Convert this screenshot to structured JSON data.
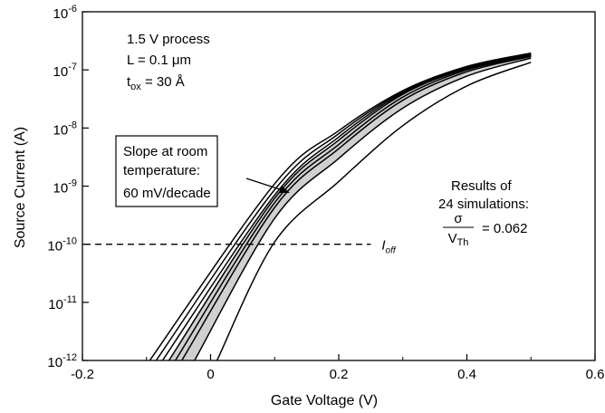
{
  "chart_data": {
    "type": "line",
    "xlabel": "Gate Voltage (V)",
    "ylabel": "Source Current (A)",
    "xlim": [
      -0.2,
      0.6
    ],
    "ylim": [
      1e-12,
      1e-06
    ],
    "yscale": "log",
    "x_ticks": [
      {
        "value": -0.2,
        "label": "-0.2"
      },
      {
        "value": 0,
        "label": "0"
      },
      {
        "value": 0.2,
        "label": "0.2"
      },
      {
        "value": 0.4,
        "label": "0.4"
      },
      {
        "value": 0.6,
        "label": "0.6"
      }
    ],
    "y_ticks": [
      {
        "exp": -6,
        "base": "10",
        "sup": "-6"
      },
      {
        "exp": -7,
        "base": "10",
        "sup": "-7"
      },
      {
        "exp": -8,
        "base": "10",
        "sup": "-8"
      },
      {
        "exp": -9,
        "base": "10",
        "sup": "-9"
      },
      {
        "exp": -10,
        "base": "10",
        "sup": "-10"
      },
      {
        "exp": -11,
        "base": "10",
        "sup": "-11"
      },
      {
        "exp": -12,
        "base": "10",
        "sup": "-12"
      }
    ],
    "grid": false,
    "shaded_band": {
      "lower_curve": 5,
      "upper_curve": 2
    },
    "curves": [
      {
        "x": [
          -0.095,
          0.1,
          0.2,
          0.3,
          0.4,
          0.5
        ],
        "y": [
          1e-12,
          1.1e-09,
          9e-09,
          4.4e-08,
          1.15e-07,
          1.95e-07
        ]
      },
      {
        "x": [
          -0.085,
          0.1,
          0.2,
          0.3,
          0.4,
          0.5
        ],
        "y": [
          1e-12,
          8.7e-10,
          8e-09,
          4.2e-08,
          1.1e-07,
          1.85e-07
        ]
      },
      {
        "x": [
          -0.065,
          0.1,
          0.2,
          0.3,
          0.4,
          0.5
        ],
        "y": [
          1e-12,
          6.2e-10,
          6.2e-09,
          3.8e-08,
          1.05e-07,
          1.8e-07
        ]
      },
      {
        "x": [
          -0.055,
          0.1,
          0.2,
          0.3,
          0.4,
          0.5
        ],
        "y": [
          1e-12,
          5.2e-10,
          5.2e-09,
          3.4e-08,
          1e-07,
          1.75e-07
        ]
      },
      {
        "x": [
          -0.045,
          0.1,
          0.2,
          0.3,
          0.4,
          0.5
        ],
        "y": [
          1e-12,
          4.3e-10,
          4.4e-09,
          3e-08,
          9.3e-08,
          1.7e-07
        ]
      },
      {
        "x": [
          -0.025,
          0.1,
          0.2,
          0.3,
          0.4,
          0.5
        ],
        "y": [
          1e-12,
          2.8e-10,
          3e-09,
          2.2e-08,
          7.8e-08,
          1.6e-07
        ]
      },
      {
        "x": [
          0.01,
          0.1,
          0.2,
          0.3,
          0.4,
          0.5
        ],
        "y": [
          1e-12,
          1.1e-10,
          1.2e-09,
          1.1e-08,
          5.3e-08,
          1.35e-07
        ]
      },
      {
        "x": [
          -0.075,
          0.1,
          0.2,
          0.3,
          0.4,
          0.5
        ],
        "y": [
          1e-12,
          7e-10,
          7e-09,
          4e-08,
          1.08e-07,
          1.82e-07
        ]
      }
    ],
    "ioff_line": {
      "value": 1e-10,
      "x_start": -0.2,
      "x_end": 0.25,
      "label": "I",
      "label_sub": "off"
    },
    "annotations": {
      "process": {
        "line1": "1.5 V process",
        "line2_prefix": "L = 0.1 ",
        "line2_unit": "μm",
        "line3_prefix": "t",
        "line3_sub": "ox",
        "line3_suffix": " = 30 Å"
      },
      "slope_box": {
        "line1": "Slope at room",
        "line2": "temperature:",
        "line3": "60 mV/decade"
      },
      "results": {
        "line1": "Results of",
        "line2": "24 simulations:",
        "numerator": "σ",
        "denominator_prefix": "V",
        "denominator_sub": "Th",
        "value": "= 0.062"
      }
    }
  }
}
